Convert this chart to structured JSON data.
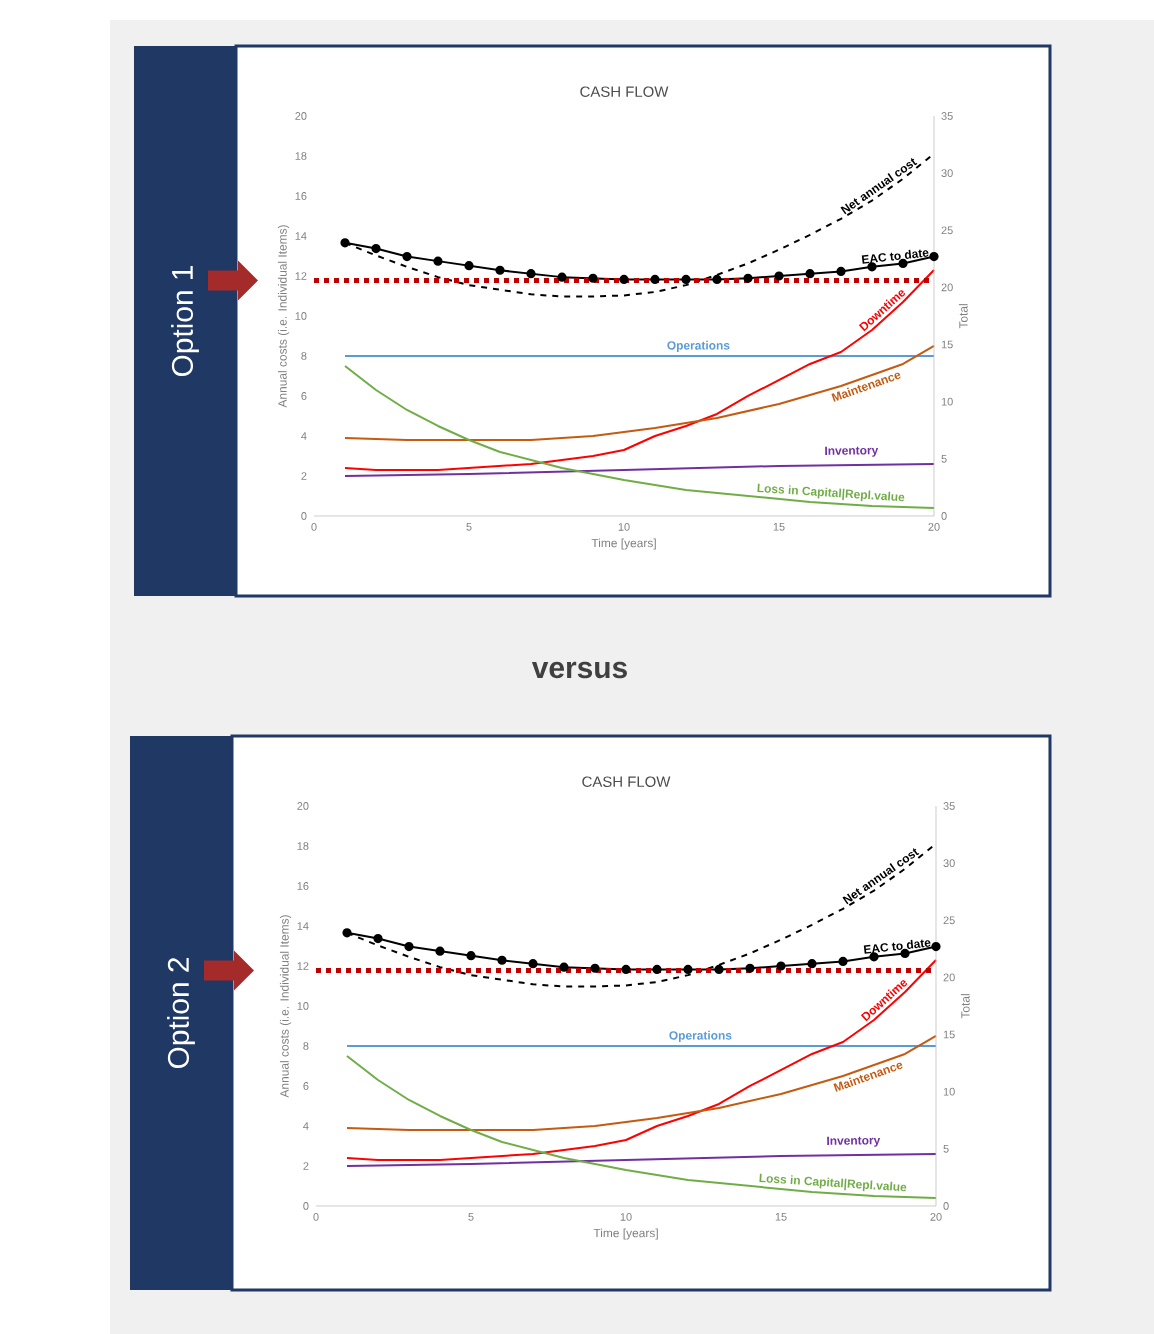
{
  "chart_data": [
    {
      "type": "line",
      "title": "CASH FLOW",
      "xlabel": "Time [years]",
      "ylabel": "Annual costs (i.e. Individual Items)",
      "y2label": "Total",
      "xlim": [
        0,
        20
      ],
      "xticks": [
        0,
        5,
        10,
        15,
        20
      ],
      "ylim": [
        0,
        20
      ],
      "yticks": [
        0,
        2,
        4,
        6,
        8,
        10,
        12,
        14,
        16,
        18,
        20
      ],
      "y2lim": [
        0,
        35
      ],
      "y2ticks": [
        0,
        5,
        10,
        15,
        20,
        25,
        30,
        35
      ],
      "marker": "none",
      "series": [
        {
          "name": "Net annual cost",
          "color": "#000000",
          "axis": "y2",
          "line_style": "dashed",
          "x": [
            1,
            2,
            3,
            4,
            5,
            6,
            7,
            8,
            9,
            10,
            11,
            12,
            13,
            14,
            15,
            16,
            17,
            18,
            19,
            20
          ],
          "values": [
            23.9,
            22.8,
            21.8,
            20.9,
            20.2,
            19.8,
            19.4,
            19.2,
            19.2,
            19.3,
            19.6,
            20.2,
            21.1,
            22.1,
            23.3,
            24.6,
            26.0,
            27.6,
            29.5,
            31.7
          ]
        },
        {
          "name": "EAC to date",
          "color": "#000000",
          "axis": "y2",
          "line_style": "solid",
          "marker": "circle",
          "x": [
            1,
            2,
            3,
            4,
            5,
            6,
            7,
            8,
            9,
            10,
            11,
            12,
            13,
            14,
            15,
            16,
            17,
            18,
            19,
            20
          ],
          "values": [
            23.9,
            23.4,
            22.7,
            22.3,
            21.9,
            21.5,
            21.2,
            20.9,
            20.8,
            20.7,
            20.7,
            20.7,
            20.7,
            20.8,
            21.0,
            21.2,
            21.4,
            21.8,
            22.1,
            22.7
          ]
        },
        {
          "name": "Operations",
          "color": "#5b9bd5",
          "line_style": "solid",
          "x": [
            1,
            20
          ],
          "values": [
            8,
            8
          ]
        },
        {
          "name": "Downtime",
          "color": "#ff0000",
          "line_style": "solid",
          "x": [
            1,
            2,
            3,
            4,
            5,
            6,
            7,
            8,
            9,
            10,
            11,
            12,
            13,
            14,
            15,
            16,
            17,
            18,
            19,
            20
          ],
          "values": [
            2.4,
            2.3,
            2.3,
            2.3,
            2.4,
            2.5,
            2.6,
            2.8,
            3.0,
            3.3,
            4.0,
            4.5,
            5.1,
            6.0,
            6.8,
            7.6,
            8.2,
            9.3,
            10.7,
            12.3
          ]
        },
        {
          "name": "Maintenance",
          "color": "#c55a11",
          "line_style": "solid",
          "x": [
            1,
            3,
            5,
            7,
            9,
            11,
            13,
            15,
            17,
            19,
            20
          ],
          "values": [
            3.9,
            3.8,
            3.8,
            3.8,
            4.0,
            4.4,
            4.9,
            5.6,
            6.5,
            7.6,
            8.5
          ]
        },
        {
          "name": "Inventory",
          "color": "#7030a0",
          "line_style": "solid",
          "x": [
            1,
            5,
            10,
            15,
            20
          ],
          "values": [
            2.0,
            2.1,
            2.3,
            2.5,
            2.6
          ]
        },
        {
          "name": "Loss in Capital|Repl.value",
          "color": "#70ad47",
          "line_style": "solid",
          "x": [
            1,
            2,
            3,
            4,
            5,
            6,
            7,
            8,
            9,
            10,
            12,
            14,
            16,
            18,
            20
          ],
          "values": [
            7.5,
            6.3,
            5.3,
            4.5,
            3.8,
            3.2,
            2.8,
            2.4,
            2.1,
            1.8,
            1.3,
            1.0,
            0.7,
            0.5,
            0.4
          ]
        }
      ],
      "ref_lines": [
        {
          "axis": "y2",
          "value": 20.6,
          "color": "#c00000",
          "line_style": "dotted"
        }
      ],
      "annotations": [
        "Option 1",
        "versus"
      ]
    },
    {
      "type": "line",
      "title": "CASH FLOW",
      "xlabel": "Time [years]",
      "ylabel": "Annual costs (i.e. Individual Items)",
      "y2label": "Total",
      "xlim": [
        0,
        20
      ],
      "xticks": [
        0,
        5,
        10,
        15,
        20
      ],
      "ylim": [
        0,
        20
      ],
      "yticks": [
        0,
        2,
        4,
        6,
        8,
        10,
        12,
        14,
        16,
        18,
        20
      ],
      "y2lim": [
        0,
        35
      ],
      "y2ticks": [
        0,
        5,
        10,
        15,
        20,
        25,
        30,
        35
      ],
      "marker": "none",
      "series": [
        {
          "name": "Net annual cost",
          "color": "#000000",
          "axis": "y2",
          "line_style": "dashed",
          "x": [
            1,
            2,
            3,
            4,
            5,
            6,
            7,
            8,
            9,
            10,
            11,
            12,
            13,
            14,
            15,
            16,
            17,
            18,
            19,
            20
          ],
          "values": [
            23.9,
            22.8,
            21.8,
            20.9,
            20.2,
            19.8,
            19.4,
            19.2,
            19.2,
            19.3,
            19.6,
            20.2,
            21.1,
            22.1,
            23.3,
            24.6,
            26.0,
            27.6,
            29.5,
            31.7
          ]
        },
        {
          "name": "EAC to date",
          "color": "#000000",
          "axis": "y2",
          "line_style": "solid",
          "marker": "circle",
          "x": [
            1,
            2,
            3,
            4,
            5,
            6,
            7,
            8,
            9,
            10,
            11,
            12,
            13,
            14,
            15,
            16,
            17,
            18,
            19,
            20
          ],
          "values": [
            23.9,
            23.4,
            22.7,
            22.3,
            21.9,
            21.5,
            21.2,
            20.9,
            20.8,
            20.7,
            20.7,
            20.7,
            20.7,
            20.8,
            21.0,
            21.2,
            21.4,
            21.8,
            22.1,
            22.7
          ]
        },
        {
          "name": "Operations",
          "color": "#5b9bd5",
          "line_style": "solid",
          "x": [
            1,
            20
          ],
          "values": [
            8,
            8
          ]
        },
        {
          "name": "Downtime",
          "color": "#ff0000",
          "line_style": "solid",
          "x": [
            1,
            2,
            3,
            4,
            5,
            6,
            7,
            8,
            9,
            10,
            11,
            12,
            13,
            14,
            15,
            16,
            17,
            18,
            19,
            20
          ],
          "values": [
            2.4,
            2.3,
            2.3,
            2.3,
            2.4,
            2.5,
            2.6,
            2.8,
            3.0,
            3.3,
            4.0,
            4.5,
            5.1,
            6.0,
            6.8,
            7.6,
            8.2,
            9.3,
            10.7,
            12.3
          ]
        },
        {
          "name": "Maintenance",
          "color": "#c55a11",
          "line_style": "solid",
          "x": [
            1,
            3,
            5,
            7,
            9,
            11,
            13,
            15,
            17,
            19,
            20
          ],
          "values": [
            3.9,
            3.8,
            3.8,
            3.8,
            4.0,
            4.4,
            4.9,
            5.6,
            6.5,
            7.6,
            8.5
          ]
        },
        {
          "name": "Inventory",
          "color": "#7030a0",
          "line_style": "solid",
          "x": [
            1,
            5,
            10,
            15,
            20
          ],
          "values": [
            2.0,
            2.1,
            2.3,
            2.5,
            2.6
          ]
        },
        {
          "name": "Loss in Capital|Repl.value",
          "color": "#70ad47",
          "line_style": "solid",
          "x": [
            1,
            2,
            3,
            4,
            5,
            6,
            7,
            8,
            9,
            10,
            12,
            14,
            16,
            18,
            20
          ],
          "values": [
            7.5,
            6.3,
            5.3,
            4.5,
            3.8,
            3.2,
            2.8,
            2.4,
            2.1,
            1.8,
            1.3,
            1.0,
            0.7,
            0.5,
            0.4
          ]
        }
      ],
      "ref_lines": [
        {
          "axis": "y2",
          "value": 20.6,
          "color": "#c00000",
          "line_style": "dotted"
        }
      ],
      "annotations": [
        "Option 2"
      ]
    }
  ]
}
